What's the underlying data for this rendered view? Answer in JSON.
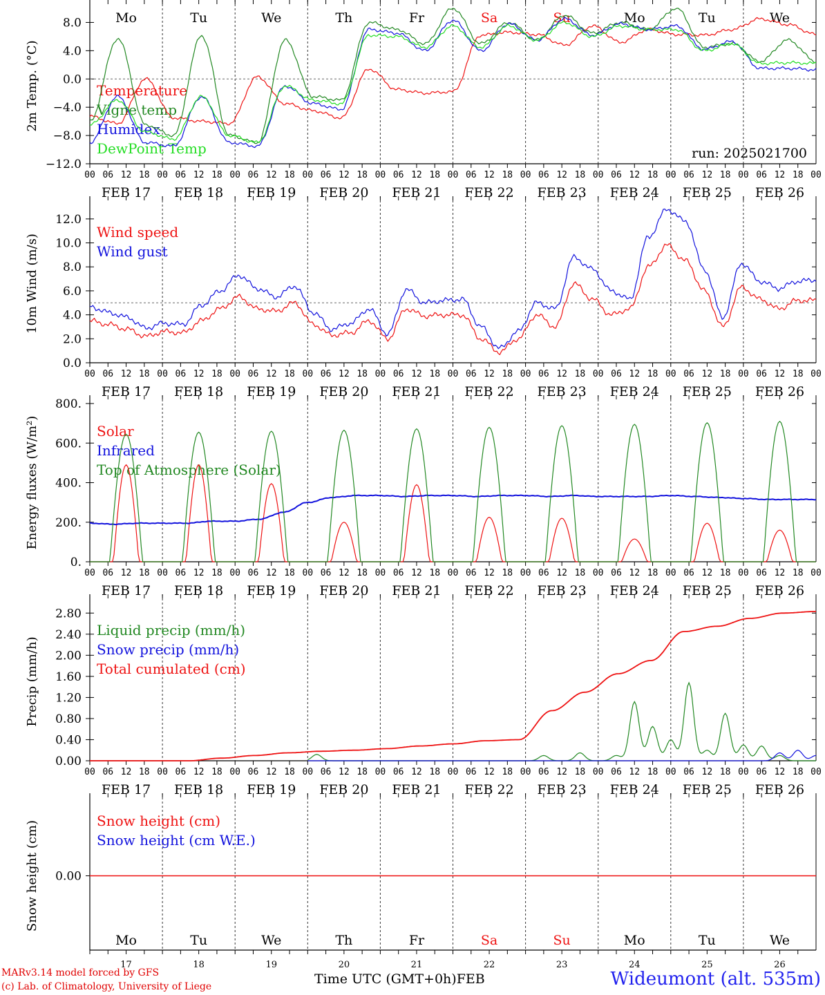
{
  "run_label": "run: 2025021700",
  "day_names": [
    {
      "name": "Mo",
      "weekend": false
    },
    {
      "name": "Tu",
      "weekend": false
    },
    {
      "name": "We",
      "weekend": false
    },
    {
      "name": "Th",
      "weekend": false
    },
    {
      "name": "Fr",
      "weekend": false
    },
    {
      "name": "Sa",
      "weekend": true
    },
    {
      "name": "Su",
      "weekend": true
    },
    {
      "name": "Mo",
      "weekend": false
    },
    {
      "name": "Tu",
      "weekend": false
    },
    {
      "name": "We",
      "weekend": false
    }
  ],
  "date_labels": [
    "FEB 17",
    "FEB 18",
    "FEB 19",
    "FEB 20",
    "FEB 21",
    "FEB 22",
    "FEB 23",
    "FEB 24",
    "FEB 25",
    "FEB 26"
  ],
  "day_numbers": [
    "17",
    "18",
    "19",
    "20",
    "21",
    "22",
    "23",
    "24",
    "25",
    "26"
  ],
  "hour_ticks": [
    "00",
    "06",
    "12",
    "18"
  ],
  "end_tick": "00",
  "colors": {
    "red": "#ee1111",
    "green": "#228822",
    "blue": "#1111dd",
    "lightgreen": "#22dd22",
    "weekend": "#ee1111"
  },
  "footer": {
    "model": "MARv3.14 model forced by GFS",
    "credit": "(c) Lab. of Climatology, University of Liege",
    "xlabel": "Time UTC (GMT+0h)",
    "month": "FEB",
    "station": "Wideumont (alt. 535m)"
  },
  "chart_data": [
    {
      "type": "line",
      "ylabel": "2m Temp. (°C)",
      "ylim": [
        -12,
        10
      ],
      "yticks": [
        "−12.0",
        "−8.0",
        "−4.0",
        "0.0",
        "4.0",
        "8.0"
      ],
      "ytick_values": [
        -12,
        -8,
        -4,
        0,
        4,
        8
      ],
      "reference_line": 0,
      "legend": [
        "Temperature",
        "Vigne temp",
        "Humidex",
        "DewPoint Temp"
      ],
      "x_hours": [
        0,
        6,
        12,
        18,
        24,
        30,
        36,
        42,
        48,
        54,
        60,
        66,
        72,
        78,
        84,
        90,
        96,
        102,
        108,
        114,
        120,
        126,
        132,
        138,
        144,
        150,
        156,
        162,
        168,
        174,
        180,
        186,
        192,
        198,
        204,
        210,
        216,
        222,
        228,
        234,
        240
      ],
      "series": [
        {
          "name": "Temperature",
          "color": "red",
          "values": [
            -5.3,
            -6.3,
            0,
            -5.5,
            -6,
            -6.3,
            0.3,
            -3.5,
            -4.5,
            -5.5,
            1.4,
            -1.5,
            -2,
            -1.8,
            6.2,
            6.6,
            6.3,
            4.8,
            7.5,
            5.2,
            7,
            6.3,
            6.2,
            7,
            8.5,
            7.7,
            6.3,
            7.5,
            7.2,
            7.5,
            7.5,
            5,
            4.8,
            5.8,
            3,
            3.2,
            3
          ],
          "hours": [
            0,
            6,
            12,
            18,
            24,
            30,
            42,
            60,
            66,
            72,
            84,
            96,
            102,
            108,
            120,
            126,
            132,
            138,
            150,
            156,
            162,
            174,
            180,
            192,
            198,
            204,
            210,
            216,
            222,
            228,
            234,
            240,
            246,
            264,
            228,
            234,
            240
          ]
        },
        {
          "name": "Vigne temp",
          "color": "green",
          "values": [
            -6,
            5.7,
            -6.5,
            -8,
            6.1,
            -8,
            -9,
            5.5,
            -2.5,
            -3,
            8,
            7,
            5,
            10,
            5,
            8,
            5.5,
            9,
            6.5,
            8,
            7,
            10,
            4.5,
            5,
            2.5,
            5.5,
            2.5
          ]
        },
        {
          "name": "Humidex",
          "color": "blue",
          "values": [
            -9,
            -2.5,
            -9,
            -9.5,
            -2.5,
            -9,
            -9.5,
            -1,
            -3.5,
            -4.3,
            7,
            6.5,
            4,
            8.3,
            4,
            7.8,
            5.5,
            8.5,
            6.2,
            7.8,
            7,
            7.5,
            4.2,
            5.3,
            1.5,
            1.5,
            1.3
          ]
        },
        {
          "name": "DewPoint Temp",
          "color": "lightgreen",
          "values": [
            -6.5,
            -3,
            -7.5,
            -8.5,
            -2.5,
            -8,
            -9,
            -1,
            -3,
            -3.5,
            6.2,
            6,
            4.5,
            7.5,
            4.5,
            7.5,
            5.5,
            8,
            6,
            7.5,
            7,
            7,
            4,
            5,
            2.2,
            2.3,
            2.2
          ]
        }
      ]
    },
    {
      "type": "line",
      "ylabel": "10m Wind (m/s)",
      "ylim": [
        0,
        13.2
      ],
      "yticks": [
        "0.0",
        "2.0",
        "4.0",
        "6.0",
        "8.0",
        "10.0",
        "12.0"
      ],
      "ytick_values": [
        0,
        2,
        4,
        6,
        8,
        10,
        12
      ],
      "reference_line": 5,
      "legend": [
        "Wind speed",
        "Wind gust"
      ],
      "series": [
        {
          "name": "Wind speed",
          "color": "red",
          "values": [
            3.5,
            3.2,
            2.8,
            2.2,
            2.6,
            2.5,
            3.5,
            4.5,
            5.5,
            4.5,
            4.3,
            5.0,
            3.2,
            2.3,
            2.5,
            3.5,
            2.0,
            4.5,
            3.9,
            4.0,
            4.0,
            2.0,
            0.9,
            2.0,
            4.0,
            3.0,
            6.6,
            5.3,
            4.0,
            4.5,
            8.0,
            9.8,
            8.5,
            6.0,
            3.0,
            6.3,
            5.3,
            4.5,
            5.2,
            5.2
          ]
        },
        {
          "name": "Wind gust",
          "color": "blue",
          "values": [
            4.7,
            4.2,
            3.8,
            2.9,
            3.3,
            3.2,
            4.8,
            6.0,
            7.3,
            6.2,
            5.5,
            6.4,
            4.2,
            2.8,
            3.3,
            4.5,
            2.4,
            6.1,
            5.0,
            5.2,
            5.3,
            3.0,
            1.2,
            2.6,
            5.0,
            4.5,
            8.8,
            7.8,
            6.0,
            5.3,
            10.5,
            12.8,
            11.8,
            7.8,
            3.8,
            8.3,
            6.8,
            6.2,
            6.8,
            6.9
          ]
        }
      ]
    },
    {
      "type": "line",
      "ylabel": "Energy fluxes (W/m²)",
      "ylim": [
        0,
        800
      ],
      "yticks": [
        "0.",
        "200.",
        "400.",
        "600.",
        "800."
      ],
      "ytick_values": [
        0,
        200,
        400,
        600,
        800
      ],
      "legend": [
        "Solar",
        "Infrared",
        "Top of Atmosphere (Solar)"
      ],
      "series": [
        {
          "name": "Solar",
          "color": "red",
          "daily_peak": [
            490,
            490,
            395,
            200,
            390,
            225,
            220,
            115,
            195,
            160
          ]
        },
        {
          "name": "Infrared",
          "color": "blue",
          "values": [
            195,
            190,
            195,
            195,
            195,
            205,
            205,
            215,
            250,
            300,
            325,
            335,
            335,
            330,
            335,
            335,
            330,
            335,
            335,
            330,
            335,
            330,
            330,
            330,
            335,
            330,
            325,
            320,
            315,
            315,
            315
          ]
        },
        {
          "name": "Top of Atmosphere (Solar)",
          "color": "green",
          "daily_peak": [
            645,
            655,
            660,
            665,
            672,
            680,
            688,
            695,
            703,
            710
          ]
        }
      ]
    },
    {
      "type": "line",
      "ylabel": "Precip (mm/h)",
      "ylim": [
        0,
        3.0
      ],
      "yticks": [
        "0.00",
        "0.40",
        "0.80",
        "1.20",
        "1.60",
        "2.00",
        "2.40",
        "2.80"
      ],
      "ytick_values": [
        0,
        0.4,
        0.8,
        1.2,
        1.6,
        2.0,
        2.4,
        2.8
      ],
      "legend": [
        "Liquid precip (mm/h)",
        "Snow precip (mm/h)",
        "Total cumulated (cm)"
      ],
      "series": [
        {
          "name": "Liquid precip (mm/h)",
          "color": "green",
          "peaks": [
            [
              75,
              0.12
            ],
            [
              150,
              0.1
            ],
            [
              162,
              0.15
            ],
            [
              174,
              0.1
            ],
            [
              180,
              1.12
            ],
            [
              186,
              0.65
            ],
            [
              192,
              0.4
            ],
            [
              198,
              1.48
            ],
            [
              204,
              0.2
            ],
            [
              210,
              0.9
            ],
            [
              216,
              0.3
            ],
            [
              222,
              0.28
            ],
            [
              228,
              0.1
            ]
          ]
        },
        {
          "name": "Snow precip (mm/h)",
          "color": "blue",
          "peaks": [
            [
              228,
              0.15
            ],
            [
              234,
              0.2
            ],
            [
              240,
              0.1
            ]
          ]
        },
        {
          "name": "Total cumulated (cm)",
          "color": "red",
          "values": [
            0,
            0,
            0,
            0,
            0.05,
            0.1,
            0.15,
            0.18,
            0.2,
            0.23,
            0.28,
            0.32,
            0.38,
            0.4,
            0.95,
            1.3,
            1.65,
            1.9,
            2.45,
            2.55,
            2.7,
            2.8,
            2.83
          ]
        }
      ]
    },
    {
      "type": "line",
      "ylabel": "Snow height (cm)",
      "ylim": [
        -1,
        1
      ],
      "yticks": [
        "0.00"
      ],
      "ytick_values": [
        0
      ],
      "legend": [
        "Snow height (cm)",
        "Snow height (cm W.E.)"
      ],
      "series": [
        {
          "name": "Snow height (cm)",
          "color": "red",
          "values": [
            0,
            0
          ]
        },
        {
          "name": "Snow height (cm W.E.)",
          "color": "blue",
          "values": [
            0,
            0
          ]
        }
      ]
    }
  ]
}
